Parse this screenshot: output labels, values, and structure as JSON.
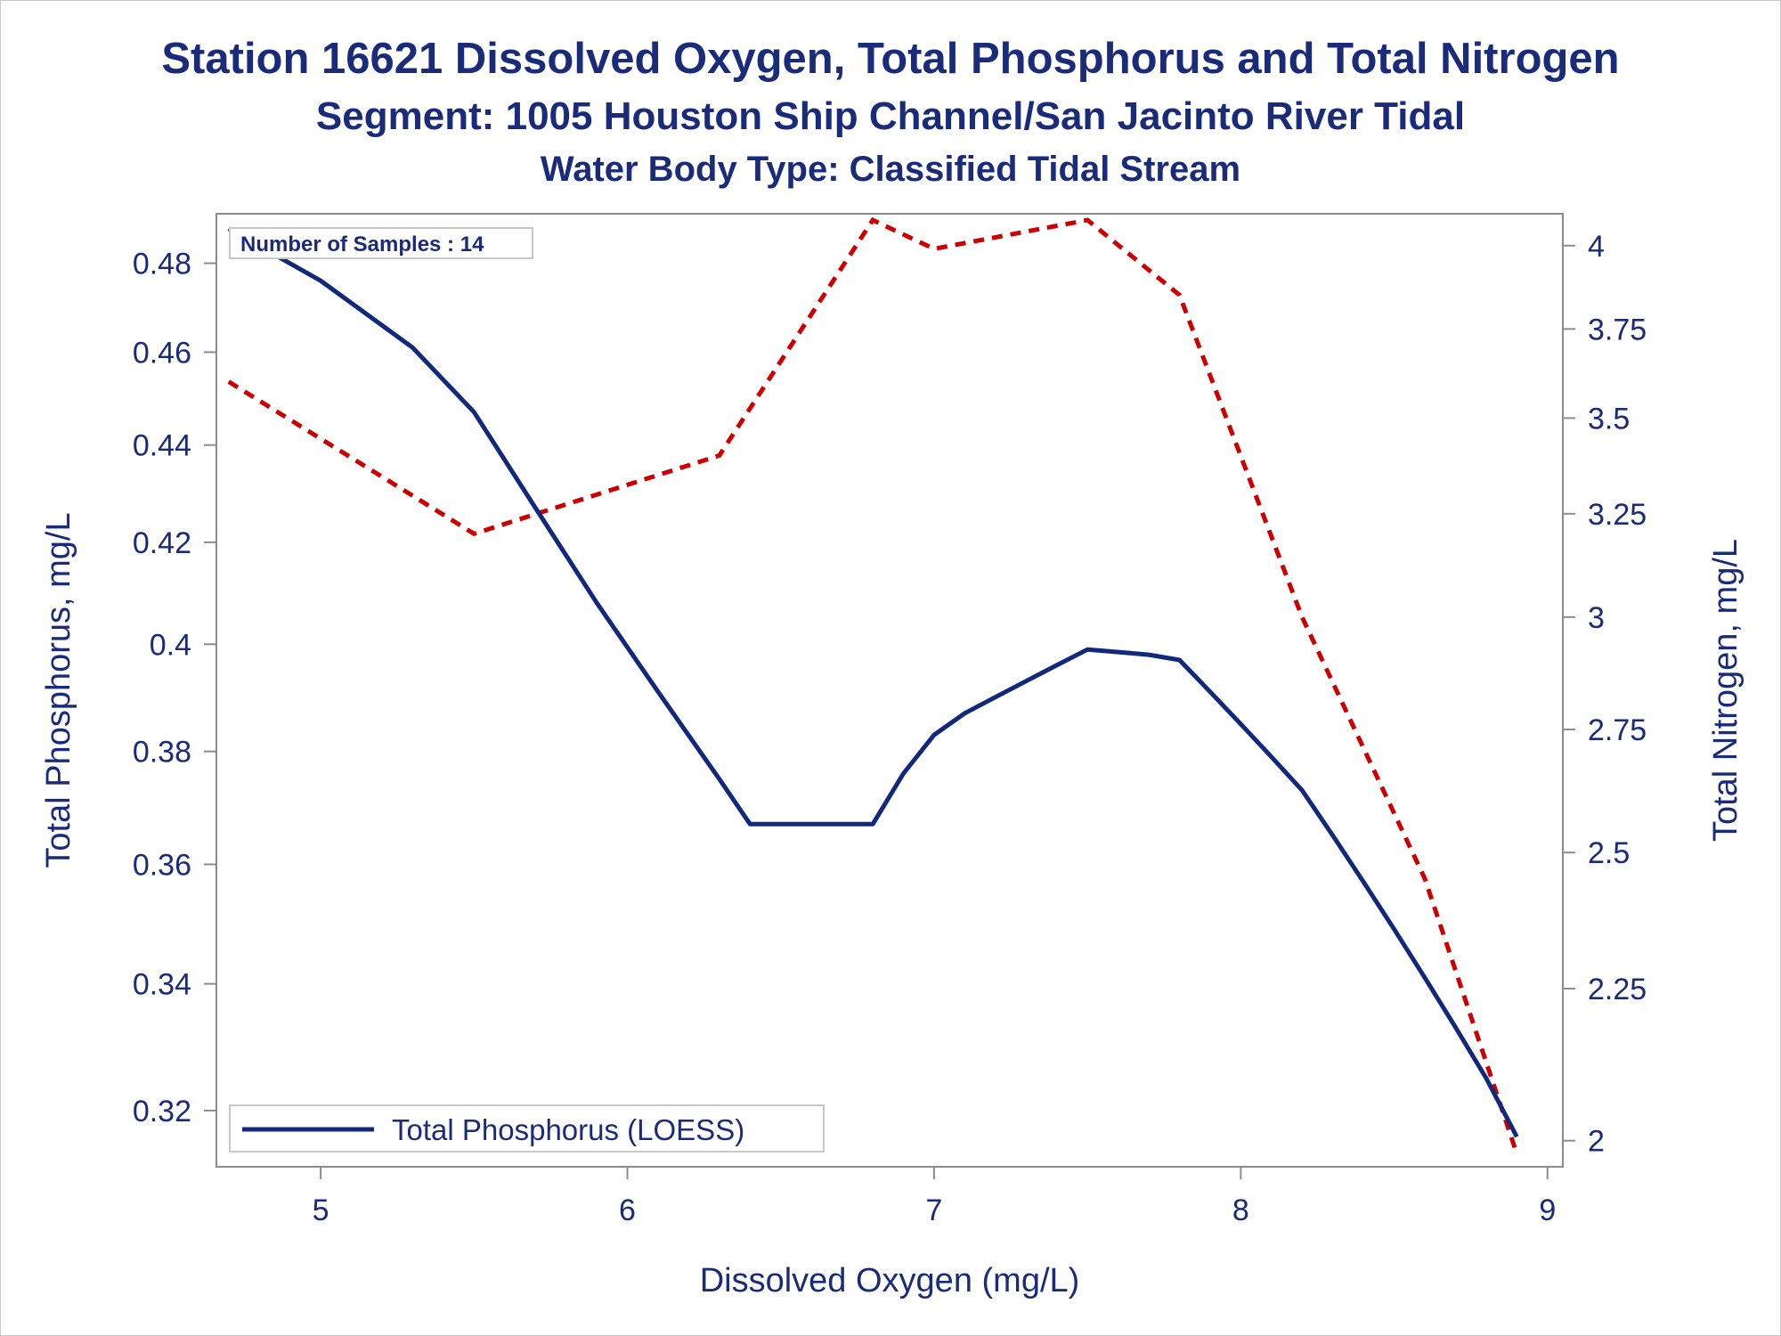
{
  "titles": {
    "line1": "Station 16621  Dissolved Oxygen, Total Phosphorus and Total Nitrogen",
    "line2": "Segment: 1005  Houston Ship Channel/San Jacinto River Tidal",
    "line3": "Water Body Type: Classified Tidal Stream"
  },
  "inset": {
    "samples_label": "Number of Samples : 14"
  },
  "legend": {
    "series_label": "Total Phosphorus (LOESS)"
  },
  "colors": {
    "phosphorus": "#12287a",
    "nitrogen": "#cc0000",
    "text": "#1a2b7a",
    "axis": "#8c8c8c"
  },
  "chart_data": {
    "type": "line",
    "xlabel": "Dissolved Oxygen (mg/L)",
    "ylabel": "Total Phosphorus, mg/L",
    "y2label": "Total Nitrogen, mg/L",
    "xlim": [
      4.66,
      9.05
    ],
    "ylim": [
      0.3115,
      0.4915
    ],
    "y2lim": [
      1.96,
      4.1
    ],
    "x_ticks": [
      5,
      6,
      7,
      8,
      9
    ],
    "y_ticks": [
      0.32,
      0.34,
      0.36,
      0.38,
      0.4,
      0.42,
      0.44,
      0.46,
      0.48
    ],
    "y2_ticks": [
      2,
      2.25,
      2.5,
      2.75,
      3,
      3.25,
      3.5,
      3.75,
      4
    ],
    "y_scale": "log",
    "y2_scale": "log",
    "series": [
      {
        "name": "Total Phosphorus (LOESS)",
        "axis": "left",
        "style": "solid",
        "x": [
          4.7,
          5.0,
          5.3,
          5.5,
          5.7,
          5.9,
          6.1,
          6.3,
          6.4,
          6.5,
          6.6,
          6.7,
          6.8,
          6.9,
          7.0,
          7.1,
          7.2,
          7.3,
          7.4,
          7.5,
          7.6,
          7.7,
          7.8,
          7.9,
          8.0,
          8.1,
          8.2,
          8.3,
          8.4,
          8.5,
          8.6,
          8.7,
          8.8,
          8.9
        ],
        "values": [
          0.488,
          0.476,
          0.461,
          0.447,
          0.427,
          0.408,
          0.391,
          0.375,
          0.367,
          0.367,
          0.367,
          0.367,
          0.367,
          0.376,
          0.383,
          0.387,
          0.39,
          0.393,
          0.396,
          0.399,
          0.3985,
          0.398,
          0.397,
          0.391,
          0.385,
          0.379,
          0.373,
          0.365,
          0.357,
          0.349,
          0.341,
          0.333,
          0.325,
          0.316
        ]
      },
      {
        "name": "Total Nitrogen",
        "axis": "right",
        "style": "dashed",
        "x": [
          4.7,
          5.5,
          6.3,
          6.8,
          7.0,
          7.5,
          7.8,
          8.2,
          8.6,
          8.9
        ],
        "values": [
          3.6,
          3.2,
          3.4,
          4.08,
          3.99,
          4.08,
          3.85,
          3.0,
          2.45,
          1.98
        ]
      }
    ]
  }
}
